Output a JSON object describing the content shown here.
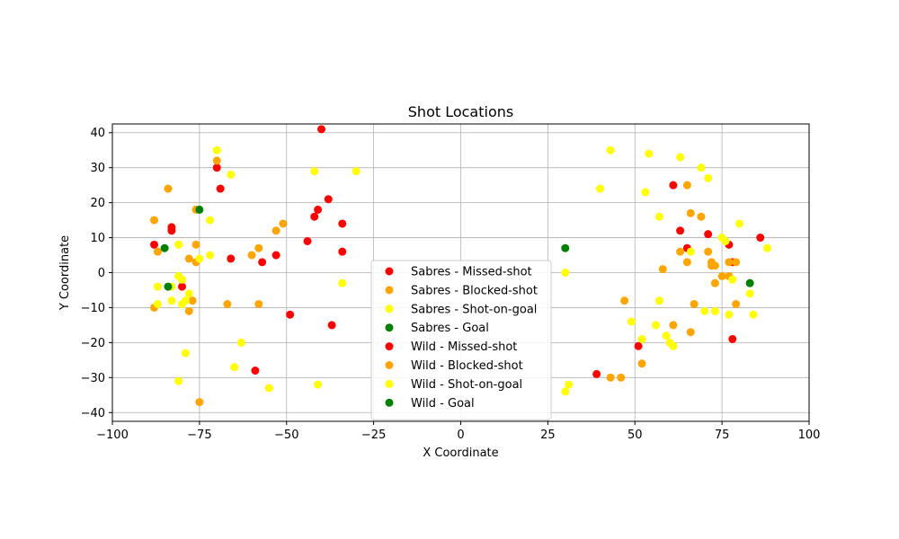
{
  "chart_data": {
    "type": "scatter",
    "title": "Shot Locations",
    "xlabel": "X Coordinate",
    "ylabel": "Y Coordinate",
    "xlim": [
      -100,
      100
    ],
    "ylim": [
      -42.5,
      42.5
    ],
    "xticks": [
      -100,
      -75,
      -50,
      -25,
      0,
      25,
      50,
      75,
      100
    ],
    "yticks": [
      -40,
      -30,
      -20,
      -10,
      0,
      10,
      20,
      30,
      40
    ],
    "grid": true,
    "legend_position": "bottom-center",
    "series": [
      {
        "name": "Sabres - Missed-shot",
        "color": "#ff0000",
        "points": [
          [
            -88,
            8
          ],
          [
            -83,
            13
          ],
          [
            -83,
            12
          ],
          [
            -80,
            -4
          ],
          [
            -70,
            30
          ],
          [
            -69,
            24
          ],
          [
            -66,
            4
          ],
          [
            -59,
            -28
          ],
          [
            -57,
            3
          ],
          [
            -53,
            5
          ],
          [
            -49,
            -12
          ],
          [
            -44,
            9
          ],
          [
            -42,
            16
          ],
          [
            -41,
            18
          ],
          [
            -40,
            41
          ],
          [
            -38,
            21
          ],
          [
            -37,
            -15
          ],
          [
            -34,
            14
          ],
          [
            -34,
            6
          ]
        ]
      },
      {
        "name": "Sabres - Blocked-shot",
        "color": "#ffa500",
        "points": [
          [
            -88,
            15
          ],
          [
            -87,
            6
          ],
          [
            -84,
            24
          ],
          [
            -88,
            -10
          ],
          [
            -78,
            4
          ],
          [
            -76,
            8
          ],
          [
            -76,
            3
          ],
          [
            -76,
            18
          ],
          [
            -78,
            -11
          ],
          [
            -77,
            -8
          ],
          [
            -75,
            -37
          ],
          [
            -70,
            32
          ],
          [
            -67,
            -9
          ],
          [
            -60,
            5
          ],
          [
            -58,
            7
          ],
          [
            -58,
            -9
          ],
          [
            -53,
            12
          ],
          [
            -51,
            14
          ]
        ]
      },
      {
        "name": "Sabres - Shot-on-goal",
        "color": "#ffff00",
        "points": [
          [
            -87,
            -4
          ],
          [
            -87,
            -9
          ],
          [
            -83,
            -4
          ],
          [
            -83,
            -8
          ],
          [
            -81,
            8
          ],
          [
            -81,
            -1
          ],
          [
            -81,
            -31
          ],
          [
            -80,
            -2
          ],
          [
            -80,
            -9
          ],
          [
            -79,
            -23
          ],
          [
            -79,
            -8
          ],
          [
            -78,
            -6
          ],
          [
            -75,
            4
          ],
          [
            -72,
            5
          ],
          [
            -72,
            15
          ],
          [
            -70,
            35
          ],
          [
            -66,
            28
          ],
          [
            -65,
            -27
          ],
          [
            -63,
            -20
          ],
          [
            -55,
            -33
          ],
          [
            -42,
            29
          ],
          [
            -41,
            -32
          ],
          [
            -34,
            -3
          ],
          [
            -30,
            29
          ]
        ]
      },
      {
        "name": "Sabres - Goal",
        "color": "#008000",
        "points": [
          [
            -85,
            7
          ],
          [
            -84,
            -4
          ],
          [
            -75,
            18
          ]
        ]
      },
      {
        "name": "Wild - Missed-shot",
        "color": "#ff0000",
        "points": [
          [
            39,
            -29
          ],
          [
            51,
            -21
          ],
          [
            61,
            25
          ],
          [
            63,
            12
          ],
          [
            65,
            7
          ],
          [
            71,
            11
          ],
          [
            77,
            8
          ],
          [
            78,
            3
          ],
          [
            78,
            -19
          ],
          [
            86,
            10
          ]
        ]
      },
      {
        "name": "Wild - Blocked-shot",
        "color": "#ffa500",
        "points": [
          [
            43,
            -30
          ],
          [
            46,
            -30
          ],
          [
            47,
            -8
          ],
          [
            52,
            -26
          ],
          [
            58,
            1
          ],
          [
            61,
            -15
          ],
          [
            63,
            6
          ],
          [
            65,
            3
          ],
          [
            65,
            25
          ],
          [
            66,
            17
          ],
          [
            66,
            -17
          ],
          [
            67,
            -9
          ],
          [
            69,
            16
          ],
          [
            71,
            6
          ],
          [
            72,
            3
          ],
          [
            72,
            2
          ],
          [
            73,
            2
          ],
          [
            73,
            -3
          ],
          [
            75,
            -1
          ],
          [
            77,
            3
          ],
          [
            77,
            -1
          ],
          [
            79,
            3
          ],
          [
            79,
            -9
          ]
        ]
      },
      {
        "name": "Wild - Shot-on-goal",
        "color": "#ffff00",
        "points": [
          [
            30,
            0
          ],
          [
            30,
            -34
          ],
          [
            31,
            -32
          ],
          [
            40,
            24
          ],
          [
            43,
            35
          ],
          [
            49,
            -14
          ],
          [
            52,
            -19
          ],
          [
            53,
            23
          ],
          [
            54,
            34
          ],
          [
            56,
            -15
          ],
          [
            57,
            16
          ],
          [
            57,
            -8
          ],
          [
            59,
            -18
          ],
          [
            60,
            -20
          ],
          [
            61,
            -21
          ],
          [
            63,
            33
          ],
          [
            66,
            6
          ],
          [
            69,
            30
          ],
          [
            70,
            -11
          ],
          [
            71,
            27
          ],
          [
            73,
            -11
          ],
          [
            75,
            10
          ],
          [
            76,
            9
          ],
          [
            77,
            -12
          ],
          [
            78,
            -2
          ],
          [
            80,
            14
          ],
          [
            83,
            -6
          ],
          [
            84,
            -12
          ],
          [
            88,
            7
          ]
        ]
      },
      {
        "name": "Wild - Goal",
        "color": "#008000",
        "points": [
          [
            30,
            7
          ],
          [
            83,
            -3
          ]
        ]
      }
    ]
  }
}
